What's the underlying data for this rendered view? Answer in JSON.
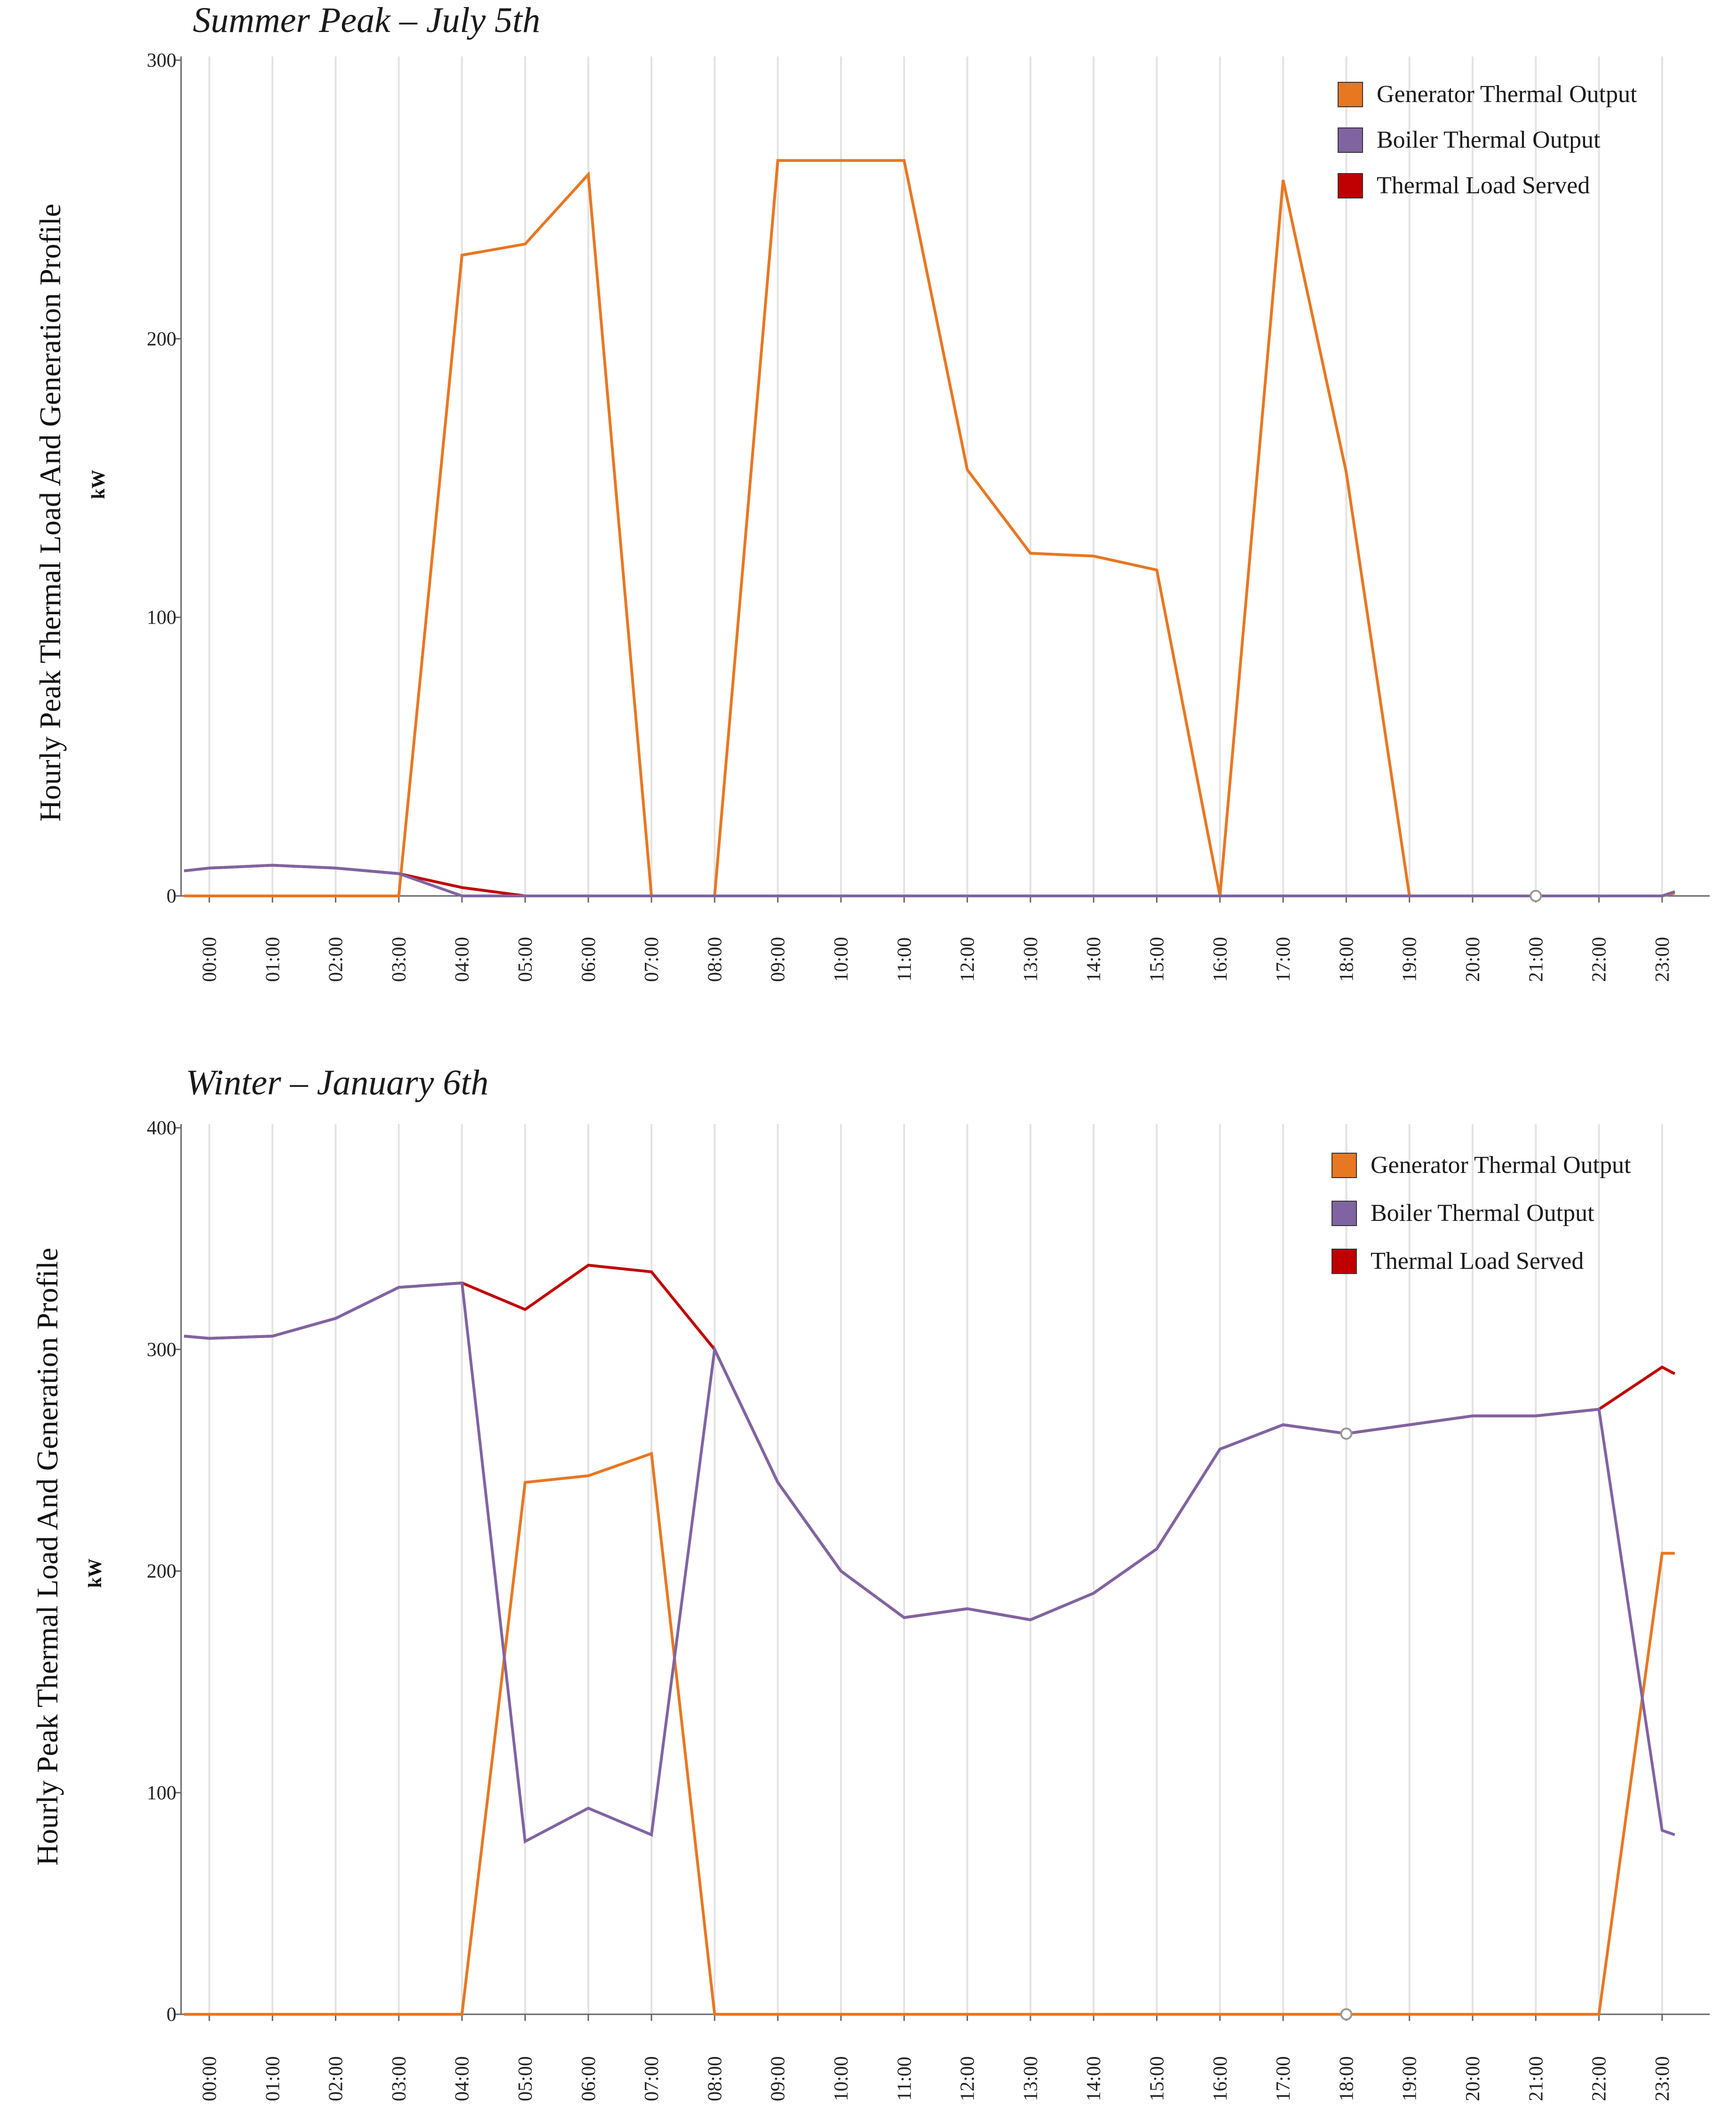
{
  "chart_data": [
    {
      "type": "line",
      "title": "Summer Peak – July 5th",
      "ylabel": "Hourly Peak Thermal Load And Generation Profile",
      "unit": "kW",
      "xlabel": "",
      "ylim": [
        0,
        300
      ],
      "yticks": [
        0,
        100,
        200,
        300
      ],
      "categories": [
        "00:00",
        "01:00",
        "02:00",
        "03:00",
        "04:00",
        "05:00",
        "06:00",
        "07:00",
        "08:00",
        "09:00",
        "10:00",
        "11:00",
        "12:00",
        "13:00",
        "14:00",
        "15:00",
        "16:00",
        "17:00",
        "18:00",
        "19:00",
        "20:00",
        "21:00",
        "22:00",
        "23:00"
      ],
      "x": [
        -0.4,
        0,
        1,
        2,
        3,
        4,
        5,
        6,
        7,
        8,
        9,
        10,
        11,
        12,
        13,
        14,
        15,
        16,
        17,
        18,
        19,
        20,
        21,
        22,
        23,
        23.2
      ],
      "legend_position": "top-right",
      "series": [
        {
          "name": "Generator Thermal Output",
          "color": "#e87722",
          "values": [
            0,
            0,
            0,
            0,
            0,
            230,
            234,
            259,
            0,
            0,
            264,
            264,
            264,
            153,
            123,
            122,
            117,
            0,
            257,
            152,
            0,
            0,
            0,
            0,
            0,
            1
          ]
        },
        {
          "name": "Boiler Thermal Output",
          "color": "#8064a2",
          "values": [
            9,
            10,
            11,
            10,
            8,
            0,
            0,
            0,
            0,
            0,
            0,
            0,
            0,
            0,
            0,
            0,
            0,
            0,
            0,
            0,
            0,
            0,
            0,
            0,
            0,
            1.5
          ]
        },
        {
          "name": "Thermal Load Served",
          "color": "#c00000",
          "values": [
            9,
            10,
            11,
            10,
            8,
            3,
            0,
            0,
            0,
            0,
            0,
            0,
            0,
            0,
            0,
            0,
            0,
            0,
            0,
            0,
            0,
            0,
            0,
            0,
            0,
            1.5
          ]
        }
      ],
      "markers": [
        {
          "x": 21,
          "y": 0
        }
      ]
    },
    {
      "type": "line",
      "title": "Winter – January 6th",
      "ylabel": "Hourly Peak Thermal Load And Generation Profile",
      "unit": "kW",
      "xlabel": "",
      "ylim": [
        0,
        400
      ],
      "yticks": [
        0,
        100,
        200,
        300,
        400
      ],
      "categories": [
        "00:00",
        "01:00",
        "02:00",
        "03:00",
        "04:00",
        "05:00",
        "06:00",
        "07:00",
        "08:00",
        "09:00",
        "10:00",
        "11:00",
        "12:00",
        "13:00",
        "14:00",
        "15:00",
        "16:00",
        "17:00",
        "18:00",
        "19:00",
        "20:00",
        "21:00",
        "22:00",
        "23:00"
      ],
      "x": [
        -0.4,
        0,
        1,
        2,
        3,
        4,
        5,
        6,
        7,
        8,
        9,
        10,
        11,
        12,
        13,
        14,
        15,
        16,
        17,
        18,
        19,
        20,
        21,
        22,
        23,
        23.2
      ],
      "legend_position": "top-right",
      "series": [
        {
          "name": "Generator Thermal Output",
          "color": "#e87722",
          "values": [
            0,
            0,
            0,
            0,
            0,
            0,
            240,
            243,
            253,
            0,
            0,
            0,
            0,
            0,
            0,
            0,
            0,
            0,
            0,
            0,
            0,
            0,
            0,
            0,
            208,
            208
          ]
        },
        {
          "name": "Boiler Thermal Output",
          "color": "#8064a2",
          "values": [
            306,
            305,
            306,
            314,
            328,
            330,
            78,
            93,
            81,
            300,
            240,
            200,
            179,
            183,
            178,
            190,
            210,
            255,
            266,
            262,
            266,
            270,
            270,
            273,
            83,
            81
          ]
        },
        {
          "name": "Thermal Load Served",
          "color": "#c00000",
          "values": [
            306,
            305,
            306,
            314,
            328,
            330,
            318,
            338,
            335,
            300,
            240,
            200,
            179,
            183,
            178,
            190,
            210,
            255,
            266,
            262,
            266,
            270,
            270,
            273,
            292,
            289
          ]
        }
      ],
      "markers": [
        {
          "x": 18,
          "y": 262
        },
        {
          "x": 18,
          "y": 0
        }
      ]
    }
  ]
}
